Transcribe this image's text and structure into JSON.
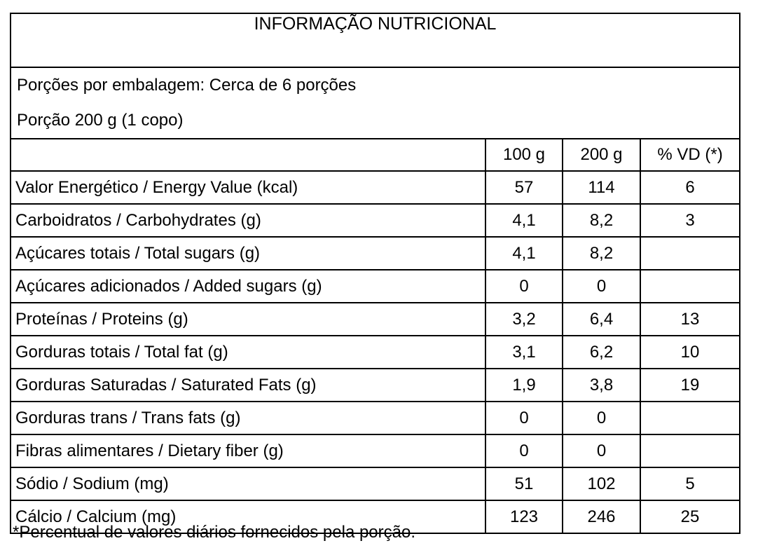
{
  "colors": {
    "border": "#000000",
    "background": "#ffffff",
    "text": "#000000"
  },
  "table": {
    "title": "INFORMAÇÃO NUTRICIONAL",
    "servings_line1": "Porções por embalagem: Cerca de 6 porções",
    "servings_line2": "Porção 200 g (1 copo)",
    "columns": {
      "label": "",
      "per100g": "100 g",
      "per200g": "200 g",
      "vd": "% VD (*)"
    },
    "rows": [
      {
        "label": "Valor Energético / Energy Value (kcal)",
        "indent": 0,
        "per100g": "57",
        "per200g": "114",
        "vd": "6"
      },
      {
        "label": "Carboidratos / Carbohydrates (g)",
        "indent": 0,
        "per100g": "4,1",
        "per200g": "8,2",
        "vd": "3"
      },
      {
        "label": "Açúcares totais / Total sugars (g)",
        "indent": 1,
        "per100g": "4,1",
        "per200g": "8,2",
        "vd": ""
      },
      {
        "label": "Açúcares adicionados / Added sugars (g)",
        "indent": 2,
        "per100g": "0",
        "per200g": "0",
        "vd": ""
      },
      {
        "label": "Proteínas / Proteins (g)",
        "indent": 0,
        "per100g": "3,2",
        "per200g": "6,4",
        "vd": "13"
      },
      {
        "label": "Gorduras totais / Total fat (g)",
        "indent": 0,
        "per100g": "3,1",
        "per200g": "6,2",
        "vd": "10"
      },
      {
        "label": "Gorduras Saturadas / Saturated Fats (g)",
        "indent": 1,
        "per100g": "1,9",
        "per200g": "3,8",
        "vd": "19"
      },
      {
        "label": "Gorduras trans / Trans fats (g)",
        "indent": 1,
        "per100g": "0",
        "per200g": "0",
        "vd": ""
      },
      {
        "label": "Fibras alimentares / Dietary fiber (g)",
        "indent": 0,
        "per100g": "0",
        "per200g": "0",
        "vd": ""
      },
      {
        "label": "Sódio / Sodium (mg)",
        "indent": 0,
        "per100g": "51",
        "per200g": "102",
        "vd": "5"
      },
      {
        "label": "Cálcio / Calcium (mg)",
        "indent": 0,
        "per100g": "123",
        "per200g": "246",
        "vd": "25"
      }
    ],
    "footnote": "*Percentual de valores diários fornecidos pela porção."
  }
}
